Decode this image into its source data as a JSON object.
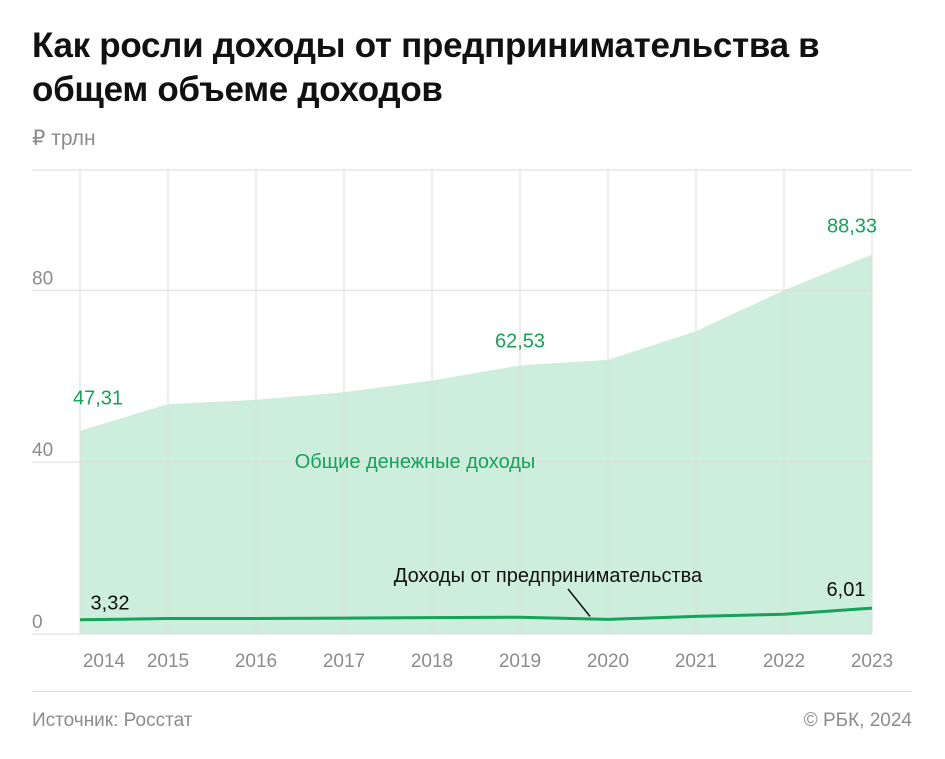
{
  "title": "Как росли доходы от предпринимательства в общем объеме доходов",
  "unit_label": "₽ трлн",
  "source": "Источник: Росстат",
  "copyright": "© РБК, 2024",
  "colors": {
    "area_fill": "#cdeedd",
    "line": "#14a35a",
    "green_text": "#14a35a",
    "grid": "#dddddd",
    "axis_text": "#8c8c8c"
  },
  "chart_data": {
    "type": "area",
    "categories": [
      "2014",
      "2015",
      "2016",
      "2017",
      "2018",
      "2019",
      "2020",
      "2021",
      "2022",
      "2023"
    ],
    "y_ticks": [
      "0",
      "40",
      "80"
    ],
    "ylim": [
      0,
      108
    ],
    "series": [
      {
        "name": "Общие денежные доходы",
        "kind": "area",
        "values": [
          47.31,
          53.5,
          54.5,
          56.3,
          59.0,
          62.53,
          63.8,
          70.5,
          80.0,
          88.33
        ],
        "labels": [
          {
            "index": 0,
            "text": "47,31"
          },
          {
            "index": 5,
            "text": "62,53"
          },
          {
            "index": 9,
            "text": "88,33"
          }
        ]
      },
      {
        "name": "Доходы от предпринимательства",
        "kind": "line",
        "values": [
          3.32,
          3.6,
          3.6,
          3.7,
          3.8,
          3.9,
          3.4,
          4.1,
          4.6,
          6.01
        ],
        "labels": [
          {
            "index": 0,
            "text": "3,32"
          },
          {
            "index": 9,
            "text": "6,01"
          }
        ]
      }
    ]
  }
}
